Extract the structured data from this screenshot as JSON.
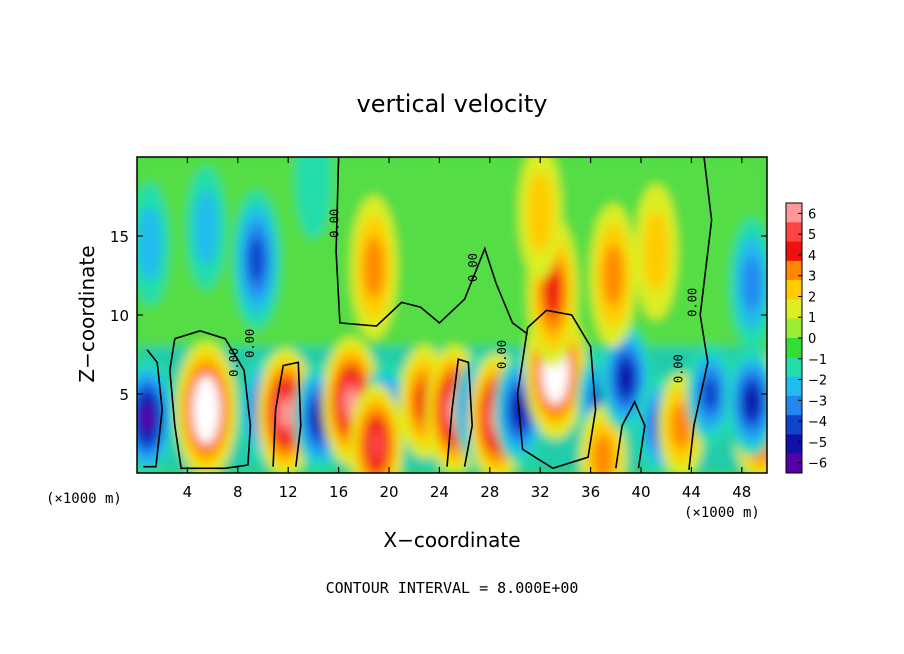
{
  "chart_data": {
    "type": "heatmap",
    "title": "vertical velocity",
    "xlabel": "X−coordinate",
    "ylabel": "Z−coordinate",
    "x_unit_left": "(×1000 m)",
    "x_unit_right": "(×1000 m)",
    "footer": "CONTOUR INTERVAL = 8.000E+00",
    "xlim": [
      0,
      50
    ],
    "ylim": [
      0,
      20
    ],
    "x_ticks": [
      "4",
      "8",
      "12",
      "16",
      "20",
      "24",
      "28",
      "32",
      "36",
      "40",
      "44",
      "48"
    ],
    "y_ticks": [
      "5",
      "10",
      "15"
    ],
    "contour_labels": [
      "0.00",
      "0.00",
      "0.00",
      "0.00",
      "0.00",
      "0.00",
      "0.00"
    ],
    "colorbar": {
      "ticks": [
        "6",
        "5",
        "4",
        "3",
        "2",
        "1",
        "0",
        "−1",
        "−2",
        "−3",
        "−4",
        "−5",
        "−6"
      ],
      "colors": [
        "#ff9999",
        "#ff4444",
        "#ee1111",
        "#ff8800",
        "#ffcc00",
        "#ddee22",
        "#99ee33",
        "#33dd33",
        "#22ddaa",
        "#22bbee",
        "#2288ee",
        "#1144cc",
        "#1111aa",
        "#5500aa"
      ]
    },
    "features": [
      {
        "kind": "updraft",
        "x": 5.5,
        "z": 4.0,
        "w": 7
      },
      {
        "kind": "downdraft",
        "x": 0.8,
        "z": 3.5,
        "w": -6
      },
      {
        "kind": "downdraft",
        "x": 10.2,
        "z": 4.0,
        "w": -5
      },
      {
        "kind": "updraft",
        "x": 11.8,
        "z": 3.8,
        "w": 6
      },
      {
        "kind": "downdraft",
        "x": 14.5,
        "z": 3.5,
        "w": -5
      },
      {
        "kind": "updraft",
        "x": 17.0,
        "z": 4.5,
        "w": 6
      },
      {
        "kind": "downdraft",
        "x": 19.8,
        "z": 3.8,
        "w": -4
      },
      {
        "kind": "updraft",
        "x": 19.0,
        "z": 1.8,
        "w": 5
      },
      {
        "kind": "updraft",
        "x": 22.8,
        "z": 4.5,
        "w": 4
      },
      {
        "kind": "updraft",
        "x": 25.2,
        "z": 4.0,
        "w": 6
      },
      {
        "kind": "downdraft",
        "x": 27.2,
        "z": 4.0,
        "w": -5
      },
      {
        "kind": "updraft",
        "x": 28.6,
        "z": 3.5,
        "w": 6
      },
      {
        "kind": "downdraft",
        "x": 30.4,
        "z": 4.0,
        "w": -5
      },
      {
        "kind": "updraft",
        "x": 33.2,
        "z": 6.5,
        "w": 7
      },
      {
        "kind": "downdraft",
        "x": 36.8,
        "z": 4.5,
        "w": -4
      },
      {
        "kind": "updraft",
        "x": 37.0,
        "z": 1.0,
        "w": 3
      },
      {
        "kind": "downdraft",
        "x": 38.8,
        "z": 6.0,
        "w": -5
      },
      {
        "kind": "downdraft",
        "x": 41.5,
        "z": 3.0,
        "w": -4
      },
      {
        "kind": "updraft",
        "x": 43.2,
        "z": 3.0,
        "w": 3
      },
      {
        "kind": "downdraft",
        "x": 45.5,
        "z": 5.0,
        "w": -4
      },
      {
        "kind": "updraft",
        "x": 49.5,
        "z": 3.5,
        "w": 6
      },
      {
        "kind": "downdraft",
        "x": 48.8,
        "z": 4.5,
        "w": -5
      },
      {
        "kind": "downdraft",
        "x": 9.5,
        "z": 13.5,
        "w": -4
      },
      {
        "kind": "downdraft",
        "x": 5.5,
        "z": 15.5,
        "w": -2
      },
      {
        "kind": "downdraft",
        "x": 1.0,
        "z": 14.5,
        "w": -2
      },
      {
        "kind": "updraft",
        "x": 18.8,
        "z": 13.0,
        "w": 3
      },
      {
        "kind": "updraft",
        "x": 33.0,
        "z": 11.5,
        "w": 4
      },
      {
        "kind": "updraft",
        "x": 37.8,
        "z": 12.5,
        "w": 3
      },
      {
        "kind": "updraft",
        "x": 41.2,
        "z": 14.0,
        "w": 2
      },
      {
        "kind": "downdraft",
        "x": 48.8,
        "z": 12.0,
        "w": -3
      },
      {
        "kind": "updraft",
        "x": 32.0,
        "z": 16.5,
        "w": 2
      },
      {
        "kind": "downdraft",
        "x": 14.0,
        "z": 18.5,
        "w": -1
      }
    ]
  }
}
